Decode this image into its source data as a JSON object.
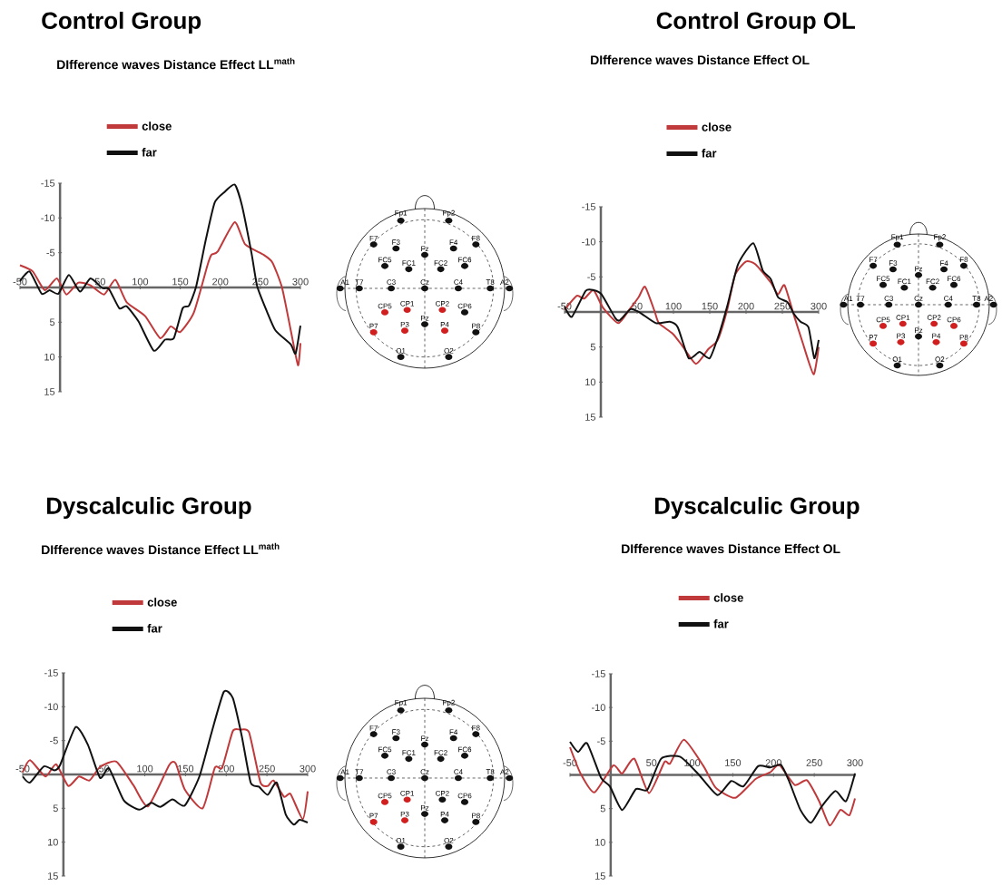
{
  "chart_data": [
    {
      "type": "line",
      "title": "Control Group",
      "subtitle": "DIfference waves Distance Effect LL$^{math}$",
      "legend": "top left",
      "xlim": [
        -50,
        300
      ],
      "ylim": [
        15,
        -15
      ],
      "xticks": [
        -50,
        50,
        100,
        150,
        200,
        250,
        300
      ],
      "yticks": [
        -15,
        -10,
        -5,
        5,
        10,
        15
      ],
      "series": [
        {
          "name": "close",
          "color": "#c0393b",
          "x": [
            -50,
            -34,
            -19,
            -4,
            8,
            23,
            38,
            55,
            69,
            83,
            106,
            125,
            138,
            150,
            167,
            184,
            189,
            197,
            218,
            231,
            254,
            265,
            277,
            288,
            297,
            300
          ],
          "values": [
            -3.2,
            -2.3,
            0.4,
            -1.3,
            1.0,
            -0.7,
            -0.3,
            1.0,
            -1.1,
            2.1,
            4.1,
            7.3,
            5.6,
            6.4,
            3.6,
            -3.2,
            -4.7,
            -5.2,
            -9.4,
            -6.2,
            -4.7,
            -3.6,
            0,
            6.2,
            11.2,
            8
          ]
        },
        {
          "name": "far",
          "color": "#111111",
          "x": [
            -50,
            -38,
            -23,
            -13,
            -2,
            11,
            25,
            38,
            53,
            61,
            74,
            83,
            98,
            117,
            131,
            142,
            153,
            161,
            170,
            182,
            193,
            205,
            218,
            227,
            239,
            246,
            258,
            269,
            288,
            294,
            300
          ],
          "values": [
            -0.9,
            -2.3,
            0.9,
            0.4,
            0.9,
            -1.8,
            0.6,
            -1.3,
            0.1,
            0.2,
            3.0,
            2.7,
            4.9,
            9.1,
            7.5,
            7.3,
            3.0,
            2.6,
            -0.2,
            -6.9,
            -12.2,
            -13.7,
            -14.8,
            -11.8,
            -4.9,
            -0.2,
            3.4,
            6.2,
            8.2,
            9.5,
            5.5
          ]
        }
      ]
    },
    {
      "type": "other",
      "categories": [
        "Fp1",
        "Fp2",
        "F7",
        "F3",
        "Fz",
        "F4",
        "F8",
        "FC5",
        "FC1",
        "FC2",
        "FC6",
        "A1",
        "T7",
        "C3",
        "Cz",
        "C4",
        "T8",
        "A2",
        "CP5",
        "CP1",
        "CP2",
        "CP6",
        "P7",
        "P3",
        "Pz",
        "P4",
        "P8",
        "O1",
        "O2"
      ],
      "colors": [
        "#111111",
        "#111111",
        "#111111",
        "#111111",
        "#111111",
        "#111111",
        "#111111",
        "#111111",
        "#111111",
        "#111111",
        "#111111",
        "#111111",
        "#111111",
        "#111111",
        "#111111",
        "#111111",
        "#111111",
        "#111111",
        "#d11f1f",
        "#d11f1f",
        "#d11f1f",
        "#111111",
        "#d11f1f",
        "#d11f1f",
        "#111111",
        "#d11f1f",
        "#111111",
        "#111111",
        "#111111"
      ]
    },
    {
      "type": "line",
      "title": "Control Group OL",
      "subtitle": "DIfference waves Distance Effect OL",
      "legend": "top",
      "xlim": [
        -50,
        300
      ],
      "ylim": [
        15,
        -15
      ],
      "xticks": [
        -50,
        50,
        100,
        150,
        200,
        250,
        300
      ],
      "yticks": [
        -15,
        -10,
        -5,
        5,
        10,
        15
      ],
      "series": [
        {
          "name": "close",
          "color": "#c0393b",
          "x": [
            -50,
            -33,
            -23,
            -10,
            3,
            24,
            39,
            52,
            61,
            74,
            80,
            99,
            112,
            131,
            148,
            161,
            174,
            185,
            200,
            213,
            234,
            244,
            253,
            266,
            278,
            293,
            300
          ],
          "values": [
            -0.3,
            -2.3,
            -1.9,
            -3.1,
            -0.6,
            1.6,
            -0.3,
            -2.1,
            -3.6,
            -0.1,
            1.6,
            3.1,
            4.8,
            7.4,
            5.3,
            4.0,
            -0.3,
            -5.3,
            -7.2,
            -6.8,
            -4.2,
            -2.5,
            -3.8,
            0.5,
            4.4,
            8.9,
            5.0
          ]
        },
        {
          "name": "far",
          "color": "#111111",
          "x": [
            -50,
            -40,
            -21,
            -10,
            1,
            20,
            26,
            41,
            54,
            76,
            95,
            106,
            121,
            136,
            150,
            163,
            174,
            189,
            210,
            223,
            234,
            244,
            257,
            266,
            275,
            286,
            294,
            300
          ],
          "values": [
            -0.8,
            0.7,
            -3.0,
            -3.1,
            -2.5,
            0.9,
            1.2,
            -0.4,
            0.1,
            1.6,
            1.4,
            2.2,
            6.6,
            5.7,
            6.6,
            3.1,
            -0.8,
            -6.8,
            -9.8,
            -5.9,
            -4.7,
            -2.1,
            -1.4,
            0.3,
            1.4,
            2.2,
            6.6,
            4.0
          ]
        }
      ]
    },
    {
      "type": "other",
      "categories": [
        "Fp1",
        "Fp2",
        "F7",
        "F3",
        "Fz",
        "F4",
        "F8",
        "FC5",
        "FC1",
        "FC2",
        "FC6",
        "A1",
        "T7",
        "C3",
        "Cz",
        "C4",
        "T8",
        "A2",
        "CP5",
        "CP1",
        "CP2",
        "CP6",
        "P7",
        "P3",
        "Pz",
        "P4",
        "P8",
        "O1",
        "O2"
      ],
      "colors": [
        "#111111",
        "#111111",
        "#111111",
        "#111111",
        "#111111",
        "#111111",
        "#111111",
        "#111111",
        "#111111",
        "#111111",
        "#111111",
        "#111111",
        "#111111",
        "#111111",
        "#111111",
        "#111111",
        "#111111",
        "#111111",
        "#d11f1f",
        "#d11f1f",
        "#d11f1f",
        "#d11f1f",
        "#d11f1f",
        "#d11f1f",
        "#111111",
        "#d11f1f",
        "#d11f1f",
        "#111111",
        "#111111"
      ]
    },
    {
      "type": "line",
      "title": "Dyscalculic Group",
      "subtitle": "DIfference waves Distance Effect LL$^{math}$",
      "legend": "top left",
      "xlim": [
        -50,
        300
      ],
      "ylim": [
        15,
        -15
      ],
      "xticks": [
        -50,
        50,
        100,
        150,
        200,
        250,
        300
      ],
      "yticks": [
        -15,
        -10,
        -5,
        5,
        10,
        15
      ],
      "series": [
        {
          "name": "close",
          "color": "#c0393b",
          "x": [
            -50,
            -41,
            -22,
            -9,
            6,
            19,
            32,
            45,
            65,
            86,
            104,
            130,
            138,
            149,
            171,
            186,
            195,
            208,
            217,
            228,
            242,
            251,
            258,
            271,
            279,
            294,
            300
          ],
          "values": [
            -0.3,
            -2.1,
            0.3,
            -1.5,
            1.7,
            0.3,
            0.9,
            -1.1,
            -1.9,
            1.6,
            4.7,
            -1.4,
            -1.6,
            2.2,
            5.0,
            -1.0,
            -1.0,
            -6.4,
            -6.6,
            -6.2,
            1.2,
            1.7,
            0.9,
            3.3,
            2.9,
            6.6,
            2.5
          ]
        },
        {
          "name": "far",
          "color": "#111111",
          "x": [
            -50,
            -41,
            -24,
            -11,
            -4,
            15,
            30,
            45,
            56,
            74,
            93,
            108,
            119,
            134,
            149,
            167,
            182,
            197,
            208,
            219,
            230,
            240,
            251,
            262,
            273,
            283,
            290,
            300
          ],
          "values": [
            0.3,
            1.2,
            -1.2,
            -0.6,
            -1.4,
            -7.0,
            -4.4,
            0.5,
            -0.9,
            3.8,
            5.2,
            4.2,
            4.8,
            3.7,
            4.6,
            0.3,
            -6.2,
            -12.2,
            -11.3,
            -5.7,
            1.2,
            1.8,
            3.0,
            1.2,
            5.9,
            7.4,
            6.7,
            7.1
          ]
        }
      ]
    },
    {
      "type": "other",
      "categories": [
        "Fp1",
        "Fp2",
        "F7",
        "F3",
        "Fz",
        "F4",
        "F8",
        "FC5",
        "FC1",
        "FC2",
        "FC6",
        "A1",
        "T7",
        "C3",
        "Cz",
        "C4",
        "T8",
        "A2",
        "CP5",
        "CP1",
        "CP2",
        "CP6",
        "P7",
        "P3",
        "Pz",
        "P4",
        "P8",
        "O1",
        "O2"
      ],
      "colors": [
        "#111111",
        "#111111",
        "#111111",
        "#111111",
        "#111111",
        "#111111",
        "#111111",
        "#111111",
        "#111111",
        "#111111",
        "#111111",
        "#111111",
        "#111111",
        "#111111",
        "#111111",
        "#111111",
        "#111111",
        "#111111",
        "#d11f1f",
        "#d11f1f",
        "#111111",
        "#111111",
        "#d11f1f",
        "#d11f1f",
        "#111111",
        "#111111",
        "#111111",
        "#111111",
        "#111111"
      ]
    },
    {
      "type": "line",
      "title": "Dyscalculic Group",
      "subtitle": "DIfference waves Distance Effect OL",
      "legend": "top left",
      "xlim": [
        -50,
        300
      ],
      "ylim": [
        15,
        -15
      ],
      "xticks": [
        -50,
        50,
        100,
        150,
        200,
        250,
        300
      ],
      "yticks": [
        -15,
        -10,
        -5,
        5,
        10,
        15
      ],
      "series": [
        {
          "name": "close",
          "color": "#c0393b",
          "x": [
            -50,
            -37,
            -20,
            3,
            14,
            29,
            47,
            66,
            73,
            90,
            114,
            129,
            153,
            178,
            196,
            207,
            226,
            241,
            256,
            269,
            282,
            293,
            300
          ],
          "values": [
            -4.1,
            -0.2,
            2.6,
            -1.4,
            -0.2,
            -2.4,
            2.7,
            -1.9,
            -1.7,
            -5.2,
            -1.3,
            1.9,
            3.4,
            0.6,
            -0.4,
            -1.5,
            1.5,
            0.8,
            3.9,
            7.5,
            5.2,
            6.0,
            3.5
          ]
        },
        {
          "name": "far",
          "color": "#111111",
          "x": [
            -50,
            -40,
            -29,
            -12,
            -1,
            14,
            31,
            45,
            62,
            85,
            107,
            131,
            148,
            163,
            181,
            196,
            209,
            219,
            233,
            246,
            259,
            276,
            289,
            300
          ],
          "values": [
            -4.9,
            -3.4,
            -4.7,
            0.4,
            1.7,
            5.2,
            2.1,
            2.2,
            -2.4,
            -2.7,
            -0.2,
            3.0,
            0.9,
            1.7,
            -1.3,
            -1.1,
            -1.5,
            0.9,
            5.2,
            7.1,
            4.7,
            2.4,
            3.9,
            -0.2
          ]
        }
      ]
    }
  ]
}
